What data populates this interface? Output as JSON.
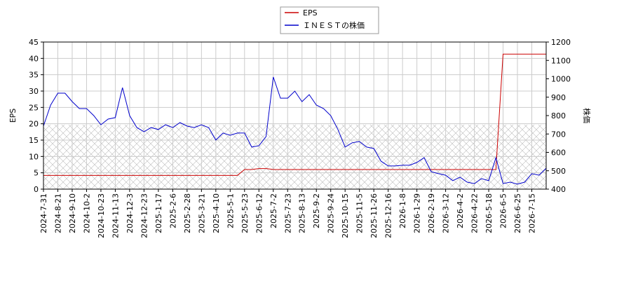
{
  "chart_data": {
    "type": "line",
    "categories": [
      "2024-7-31",
      null,
      "2024-8-21",
      null,
      "2024-9-10",
      null,
      "2024-10-2",
      null,
      "2024-10-23",
      null,
      "2024-11-13",
      null,
      "2024-12-3",
      null,
      "2024-12-23",
      null,
      "2025-1-17",
      null,
      "2025-2-6",
      null,
      "2025-2-28",
      null,
      "2025-3-21",
      null,
      "2025-4-10",
      null,
      "2025-5-1",
      null,
      "2025-5-23",
      null,
      "2025-6-12",
      null,
      "2025-7-2",
      null,
      "2025-7-23",
      null,
      "2025-8-13",
      null,
      "2025-9-2",
      null,
      "2025-9-24",
      null,
      "2025-10-15",
      null,
      "2025-11-5",
      null,
      "2025-11-26",
      null,
      "2025-12-16",
      null,
      "2026-1-8",
      null,
      "2026-1-29",
      null,
      "2026-2-19",
      null,
      "2026-3-12",
      null,
      "2026-4-2",
      null,
      "2026-4-22",
      null,
      "2026-5-18",
      null,
      "2026-6-5",
      null,
      "2026-6-25",
      null,
      "2026-7-15",
      null,
      null
    ],
    "ylabel": "EPS",
    "y2label": "株価",
    "ylim": [
      0,
      45
    ],
    "yticks": [
      0,
      5,
      10,
      15,
      20,
      25,
      30,
      35,
      40,
      45
    ],
    "y2lim": [
      400,
      1200
    ],
    "y2ticks": [
      400,
      500,
      600,
      700,
      800,
      900,
      1000,
      1100,
      1200
    ],
    "grid": true,
    "legend": "top",
    "series": [
      {
        "name": "EPS",
        "color": "#cc0000",
        "values": [
          4.2,
          4.2,
          4.2,
          4.2,
          4.2,
          4.2,
          4.2,
          4.2,
          4.2,
          4.2,
          4.2,
          4.2,
          4.2,
          4.2,
          4.2,
          4.2,
          4.2,
          4.2,
          4.2,
          4.2,
          4.2,
          4.2,
          4.2,
          4.2,
          4.2,
          4.2,
          4.2,
          4.2,
          6,
          6,
          6.3,
          6.3,
          6,
          6,
          6,
          6,
          6,
          6,
          6,
          6,
          6,
          6,
          6,
          6,
          6,
          6,
          6,
          6,
          6,
          6,
          6,
          6,
          6,
          6,
          6,
          6,
          6,
          6,
          6,
          6,
          6,
          6,
          6,
          6,
          41.3,
          41.3,
          41.3,
          41.3,
          41.3,
          41.3,
          41.3
        ]
      },
      {
        "name": "ＩＮＥＳＴの株価",
        "color": "#0000cc",
        "axis": "y2",
        "values": [
          743,
          857,
          922,
          922,
          876,
          838,
          838,
          800,
          750,
          781,
          789,
          952,
          800,
          735,
          712,
          735,
          724,
          750,
          735,
          762,
          743,
          735,
          750,
          735,
          667,
          705,
          693,
          705,
          705,
          629,
          636,
          686,
          1010,
          895,
          895,
          933,
          876,
          914,
          857,
          838,
          800,
          724,
          629,
          652,
          659,
          629,
          621,
          552,
          526,
          526,
          530,
          530,
          545,
          571,
          495,
          484,
          476,
          446,
          465,
          438,
          430,
          457,
          446,
          571,
          430,
          438,
          427,
          438,
          484,
          476,
          514
        ]
      }
    ]
  }
}
